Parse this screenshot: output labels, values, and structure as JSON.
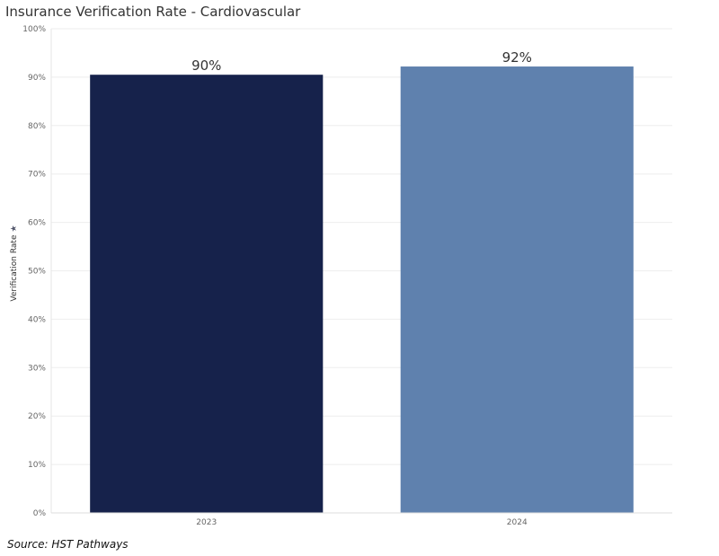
{
  "chart_data": {
    "type": "bar",
    "title": "Insurance Verification Rate - Cardiovascular",
    "xlabel": "",
    "ylabel": "Verification Rate",
    "categories": [
      "2023",
      "2024"
    ],
    "values": [
      90.5,
      92.2
    ],
    "data_labels": [
      "90%",
      "92%"
    ],
    "bar_colors": [
      "#16224b",
      "#5f81ae"
    ],
    "ylim": [
      0,
      100
    ],
    "yticks": [
      0,
      10,
      20,
      30,
      40,
      50,
      60,
      70,
      80,
      90,
      100
    ],
    "ytick_labels": [
      "0%",
      "10%",
      "20%",
      "30%",
      "40%",
      "50%",
      "60%",
      "70%",
      "80%",
      "90%",
      "100%"
    ],
    "grid": true,
    "legend": "none"
  },
  "ylabel_icon": "sort-icon",
  "source": "Source: HST Pathways"
}
